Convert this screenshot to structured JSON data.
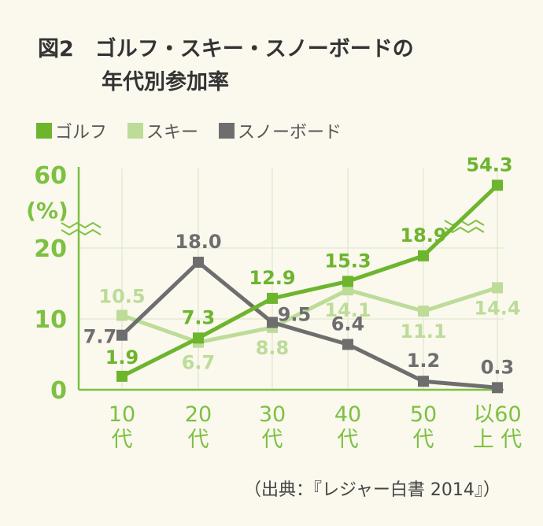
{
  "title": {
    "line1": "図2　ゴルフ・スキー・スノーボードの",
    "line2": "年代別参加率"
  },
  "source": "（出典：『レジャー白書 2014』）",
  "colors": {
    "golf": "#6cb52d",
    "ski": "#bcdc98",
    "snowboard": "#6e6e6e",
    "axis": "#7cc142",
    "grid": "#e4ebd4",
    "background": "#fbf8ee"
  },
  "chart_data": {
    "type": "line",
    "categories": [
      "10代",
      "20代",
      "30代",
      "40代",
      "50代",
      "60以上"
    ],
    "category_labels": [
      {
        "top": "10",
        "bottom": "代"
      },
      {
        "top": "20",
        "bottom": "代"
      },
      {
        "top": "30",
        "bottom": "代"
      },
      {
        "top": "40",
        "bottom": "代"
      },
      {
        "top": "50",
        "bottom": "代"
      },
      {
        "top": "以60",
        "bottom": "上 代"
      }
    ],
    "series": [
      {
        "name": "ゴルフ",
        "key": "golf",
        "values": [
          1.9,
          7.3,
          12.9,
          15.3,
          18.9,
          54.3
        ],
        "labels": [
          "1.9",
          "7.3",
          "12.9",
          "15.3",
          "18.9",
          "54.3"
        ]
      },
      {
        "name": "スキー",
        "key": "ski",
        "values": [
          10.5,
          6.7,
          8.8,
          14.1,
          11.1,
          14.4
        ],
        "labels": [
          "10.5",
          "6.7",
          "8.8",
          "14.1",
          "11.1",
          "14.4"
        ]
      },
      {
        "name": "スノーボード",
        "key": "snowboard",
        "values": [
          7.7,
          18.0,
          9.5,
          6.4,
          1.2,
          0.3
        ],
        "labels": [
          "7.7",
          "18.0",
          "9.5",
          "6.4",
          "1.2",
          "0.3"
        ]
      }
    ],
    "yticks": [
      "0",
      "10",
      "20",
      "60"
    ],
    "yunit": "(%)",
    "ylim": [
      0,
      60
    ],
    "axis_break": "between 20 and 60",
    "legend_position": "top-left",
    "grid": true
  }
}
